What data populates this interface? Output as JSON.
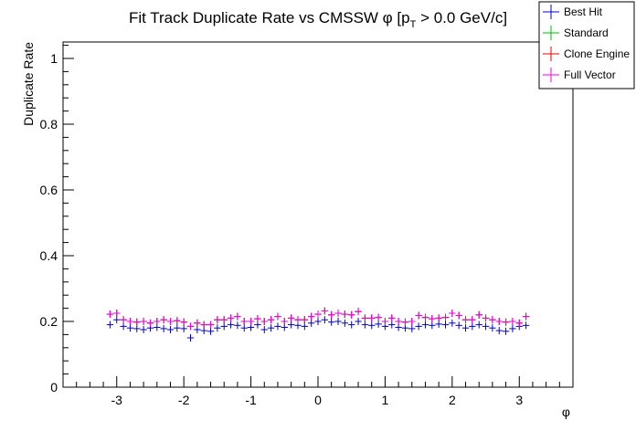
{
  "chart_data": {
    "type": "scatter",
    "title_main": "Fit Track Duplicate Rate vs CMSSW φ [p",
    "title_sub": "T",
    "title_tail": " > 0.0 GeV/c]",
    "xlabel": "φ",
    "ylabel": "Duplicate Rate",
    "xlim": [
      -3.8,
      3.8
    ],
    "ylim": [
      0,
      1.05
    ],
    "xticks": [
      -3,
      -2,
      -1,
      0,
      1,
      2,
      3
    ],
    "xtick_labels": [
      "-3",
      "-2",
      "-1",
      "0",
      "1",
      "2",
      "3"
    ],
    "yticks": [
      0,
      0.2,
      0.4,
      0.6,
      0.8,
      1
    ],
    "ytick_labels": [
      "0",
      "0.2",
      "0.4",
      "0.6",
      "0.8",
      "1"
    ],
    "legend_position": "top-right",
    "x": [
      -3.1,
      -3.0,
      -2.9,
      -2.8,
      -2.7,
      -2.6,
      -2.5,
      -2.4,
      -2.3,
      -2.2,
      -2.1,
      -2.0,
      -1.9,
      -1.8,
      -1.7,
      -1.6,
      -1.5,
      -1.4,
      -1.3,
      -1.2,
      -1.1,
      -1.0,
      -0.9,
      -0.8,
      -0.7,
      -0.6,
      -0.5,
      -0.4,
      -0.3,
      -0.2,
      -0.1,
      0.0,
      0.1,
      0.2,
      0.3,
      0.4,
      0.5,
      0.6,
      0.7,
      0.8,
      0.9,
      1.0,
      1.1,
      1.2,
      1.3,
      1.4,
      1.5,
      1.6,
      1.7,
      1.8,
      1.9,
      2.0,
      2.1,
      2.2,
      2.3,
      2.4,
      2.5,
      2.6,
      2.7,
      2.8,
      2.9,
      3.0,
      3.1
    ],
    "series": [
      {
        "name": "Best Hit",
        "color": "#0000cc",
        "values": [
          0.19,
          0.205,
          0.185,
          0.18,
          0.178,
          0.175,
          0.18,
          0.182,
          0.178,
          0.175,
          0.18,
          0.178,
          0.15,
          0.175,
          0.172,
          0.17,
          0.18,
          0.185,
          0.19,
          0.188,
          0.18,
          0.182,
          0.19,
          0.175,
          0.18,
          0.185,
          0.182,
          0.19,
          0.188,
          0.185,
          0.195,
          0.2,
          0.205,
          0.198,
          0.2,
          0.195,
          0.19,
          0.2,
          0.19,
          0.188,
          0.192,
          0.185,
          0.19,
          0.182,
          0.18,
          0.178,
          0.185,
          0.19,
          0.188,
          0.192,
          0.19,
          0.195,
          0.188,
          0.18,
          0.185,
          0.19,
          0.185,
          0.18,
          0.172,
          0.17,
          0.178,
          0.185,
          0.188
        ]
      },
      {
        "name": "Standard",
        "color": "#00bb00",
        "values": [
          0.222,
          0.225,
          0.205,
          0.2,
          0.198,
          0.2,
          0.195,
          0.2,
          0.205,
          0.2,
          0.202,
          0.198,
          0.185,
          0.195,
          0.19,
          0.19,
          0.205,
          0.205,
          0.21,
          0.215,
          0.2,
          0.2,
          0.208,
          0.2,
          0.205,
          0.215,
          0.2,
          0.21,
          0.205,
          0.205,
          0.215,
          0.222,
          0.232,
          0.22,
          0.225,
          0.222,
          0.22,
          0.23,
          0.21,
          0.21,
          0.212,
          0.2,
          0.21,
          0.2,
          0.198,
          0.2,
          0.218,
          0.212,
          0.208,
          0.21,
          0.212,
          0.225,
          0.218,
          0.205,
          0.205,
          0.22,
          0.21,
          0.205,
          0.2,
          0.198,
          0.2,
          0.195,
          0.215
        ]
      },
      {
        "name": "Clone Engine",
        "color": "#ee0000",
        "values": [
          0.222,
          0.225,
          0.205,
          0.2,
          0.198,
          0.2,
          0.195,
          0.2,
          0.205,
          0.2,
          0.202,
          0.198,
          0.185,
          0.195,
          0.19,
          0.19,
          0.205,
          0.205,
          0.21,
          0.215,
          0.2,
          0.2,
          0.208,
          0.2,
          0.205,
          0.215,
          0.2,
          0.21,
          0.205,
          0.205,
          0.215,
          0.222,
          0.232,
          0.22,
          0.225,
          0.222,
          0.22,
          0.23,
          0.21,
          0.21,
          0.212,
          0.2,
          0.21,
          0.2,
          0.198,
          0.2,
          0.218,
          0.212,
          0.208,
          0.21,
          0.212,
          0.225,
          0.218,
          0.205,
          0.205,
          0.22,
          0.21,
          0.205,
          0.2,
          0.198,
          0.2,
          0.195,
          0.215
        ]
      },
      {
        "name": "Full Vector",
        "color": "#ee00ee",
        "values": [
          0.222,
          0.225,
          0.205,
          0.2,
          0.198,
          0.2,
          0.195,
          0.2,
          0.205,
          0.2,
          0.202,
          0.198,
          0.185,
          0.195,
          0.19,
          0.19,
          0.205,
          0.205,
          0.21,
          0.215,
          0.2,
          0.2,
          0.208,
          0.2,
          0.205,
          0.215,
          0.2,
          0.21,
          0.205,
          0.205,
          0.215,
          0.222,
          0.232,
          0.22,
          0.225,
          0.222,
          0.22,
          0.23,
          0.21,
          0.21,
          0.212,
          0.2,
          0.21,
          0.2,
          0.198,
          0.2,
          0.218,
          0.212,
          0.208,
          0.21,
          0.212,
          0.225,
          0.218,
          0.205,
          0.205,
          0.22,
          0.21,
          0.205,
          0.2,
          0.198,
          0.2,
          0.195,
          0.215
        ]
      }
    ]
  }
}
